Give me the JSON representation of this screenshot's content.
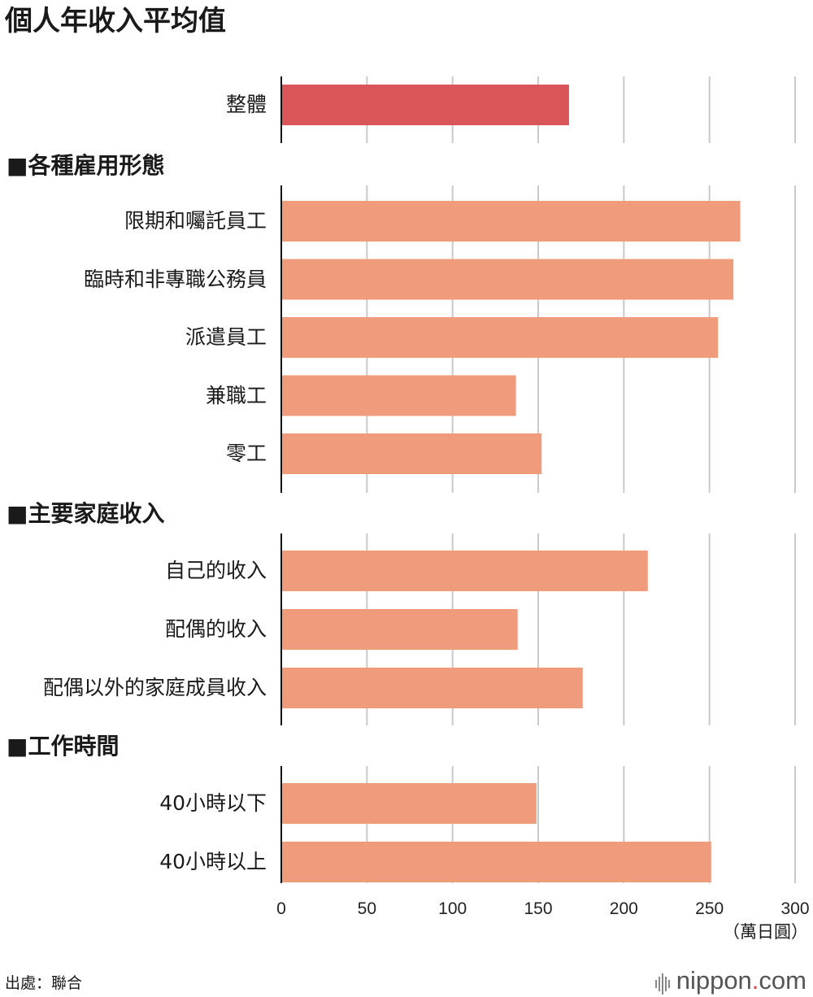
{
  "title": "個人年收入平均值",
  "chart_data": {
    "type": "bar",
    "orientation": "horizontal",
    "title": "個人年收入平均值",
    "unit_label": "（萬日圓）",
    "xlim": [
      0,
      300
    ],
    "xticks": [
      0,
      50,
      100,
      150,
      200,
      250,
      300
    ],
    "grid": true,
    "groups": [
      {
        "title": "",
        "bars": [
          {
            "label": "整體",
            "value": 168,
            "color": "#d9555a"
          }
        ]
      },
      {
        "title": "■各種雇用形態",
        "bars": [
          {
            "label": "限期和囑託員工",
            "value": 268,
            "color": "#f19b7d"
          },
          {
            "label": "臨時和非專職公務員",
            "value": 264,
            "color": "#f19b7d"
          },
          {
            "label": "派遣員工",
            "value": 255,
            "color": "#f19b7d"
          },
          {
            "label": "兼職工",
            "value": 137,
            "color": "#f19b7d"
          },
          {
            "label": "零工",
            "value": 152,
            "color": "#f19b7d"
          }
        ]
      },
      {
        "title": "■主要家庭收入",
        "bars": [
          {
            "label": "自己的收入",
            "value": 214,
            "color": "#f19b7d"
          },
          {
            "label": "配偶的收入",
            "value": 138,
            "color": "#f19b7d"
          },
          {
            "label": "配偶以外的家庭成員收入",
            "value": 176,
            "color": "#f19b7d"
          }
        ]
      },
      {
        "title": "■工作時間",
        "bars": [
          {
            "label": "40小時以下",
            "value": 149,
            "color": "#f19b7d"
          },
          {
            "label": "40小時以上",
            "value": 251,
            "color": "#f19b7d"
          }
        ]
      }
    ]
  },
  "footer": {
    "source": "出處：聯合",
    "brand_name": "nippon",
    "brand_dot": ".",
    "brand_tld": "com"
  }
}
